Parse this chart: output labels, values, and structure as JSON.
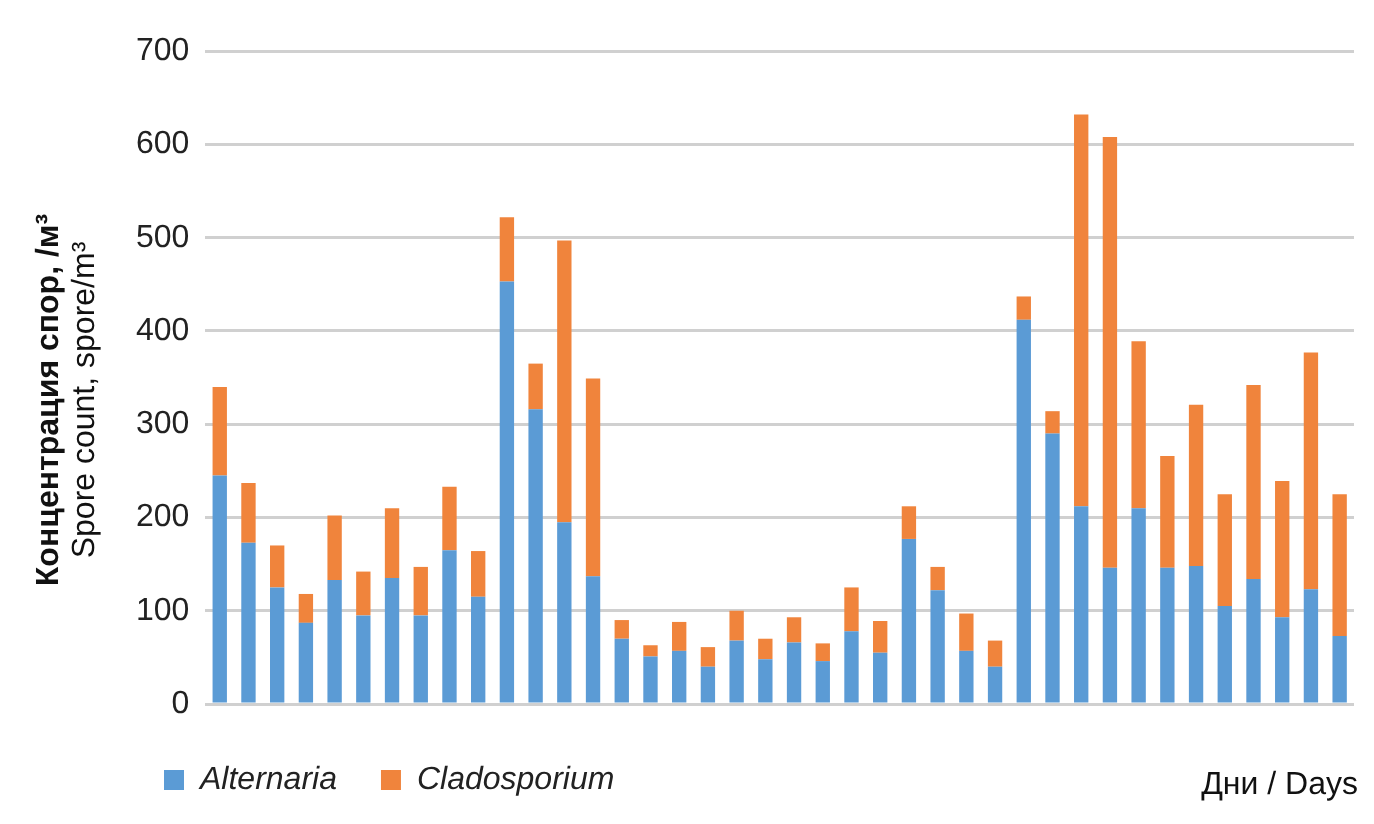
{
  "chart_data": {
    "type": "bar",
    "stacked": true,
    "categories": [
      null,
      null,
      null,
      null,
      null,
      null,
      null,
      null,
      null,
      null,
      null,
      null,
      null,
      null,
      null,
      null,
      null,
      null,
      null,
      null,
      null,
      null,
      null,
      null,
      null,
      null,
      null,
      null,
      null,
      null,
      null,
      null,
      null,
      null,
      null,
      null,
      null,
      null,
      null,
      null
    ],
    "series": [
      {
        "name": "Alternaria",
        "color": "#5b9bd5",
        "values": [
          245,
          173,
          125,
          87,
          133,
          95,
          135,
          95,
          165,
          115,
          453,
          316,
          195,
          137,
          70,
          51,
          57,
          40,
          68,
          48,
          66,
          46,
          78,
          55,
          177,
          122,
          57,
          40,
          412,
          290,
          212,
          146,
          210,
          146,
          148,
          105,
          134,
          93,
          123,
          73
        ]
      },
      {
        "name": "Cladosporium",
        "color": "#f0843c",
        "values": [
          95,
          64,
          45,
          31,
          69,
          47,
          75,
          52,
          68,
          49,
          69,
          49,
          302,
          212,
          20,
          12,
          31,
          21,
          32,
          22,
          27,
          19,
          47,
          34,
          35,
          25,
          40,
          28,
          25,
          24,
          420,
          462,
          179,
          120,
          173,
          120,
          208,
          146,
          254,
          152
        ]
      }
    ],
    "ylabel": "Концентрация спор, /м³\nSpore count, spore/m³",
    "xlabel": "Дни / Days",
    "ylim": [
      0,
      700
    ],
    "yticks": [
      0,
      100,
      200,
      300,
      400,
      500,
      600,
      700
    ],
    "grid": "y",
    "legend": "bottom left"
  }
}
